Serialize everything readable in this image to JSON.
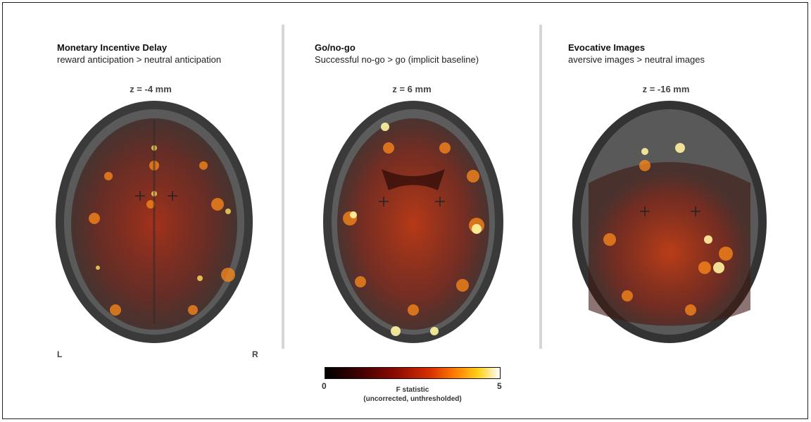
{
  "panels": [
    {
      "title": "Monetary Incentive Delay",
      "subtitle": "reward anticipation > neutral anticipation",
      "slice": "z = -4 mm"
    },
    {
      "title": "Go/no-go",
      "subtitle": "Successful no-go > go (implicit baseline)",
      "slice": "z = 6 mm"
    },
    {
      "title": "Evocative Images",
      "subtitle": "aversive images > neutral images",
      "slice": "z = -16 mm"
    }
  ],
  "orientation": {
    "left": "L",
    "right": "R"
  },
  "colorbar": {
    "min_label": "0",
    "max_label": "5",
    "title": "F statistic",
    "note": "(uncorrected, unthresholded)",
    "colors": [
      "#000000",
      "#8b0a00",
      "#d73000",
      "#ff7a00",
      "#ffd21a",
      "#ffffff"
    ]
  }
}
